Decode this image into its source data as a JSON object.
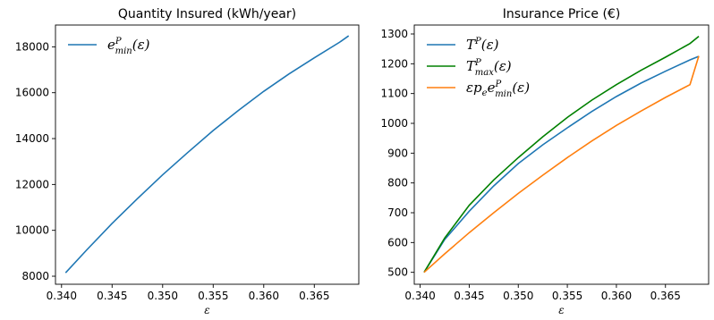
{
  "chart_data": [
    {
      "type": "line",
      "title": "Quantity Insured (kWh/year)",
      "xlabel": "ε",
      "ylabel": "",
      "xlim": [
        0.3394,
        0.3694
      ],
      "ylim": [
        7650,
        18950
      ],
      "xticks": [
        0.34,
        0.345,
        0.35,
        0.355,
        0.36,
        0.365
      ],
      "xtick_labels": [
        "0.340",
        "0.345",
        "0.350",
        "0.355",
        "0.360",
        "0.365"
      ],
      "yticks": [
        8000,
        10000,
        12000,
        14000,
        16000,
        18000
      ],
      "ytick_labels": [
        "8000",
        "10000",
        "12000",
        "14000",
        "16000",
        "18000"
      ],
      "grid": false,
      "legend_position": "top-left",
      "series": [
        {
          "name": "e_min^P(ε)",
          "legend_base": "e",
          "legend_sup": "P",
          "legend_sub": "min",
          "legend_tail": "(ε)",
          "color": "#1f77b4",
          "x": [
            0.3404,
            0.3425,
            0.345,
            0.3475,
            0.35,
            0.3525,
            0.355,
            0.3575,
            0.36,
            0.3625,
            0.365,
            0.3675,
            0.3684
          ],
          "y": [
            8150,
            9150,
            10300,
            11380,
            12420,
            13400,
            14350,
            15230,
            16060,
            16820,
            17520,
            18200,
            18480
          ]
        }
      ]
    },
    {
      "type": "line",
      "title": "Insurance Price (€)",
      "xlabel": "ε",
      "ylabel": "",
      "xlim": [
        0.3394,
        0.3694
      ],
      "ylim": [
        460,
        1330
      ],
      "xticks": [
        0.34,
        0.345,
        0.35,
        0.355,
        0.36,
        0.365
      ],
      "xtick_labels": [
        "0.340",
        "0.345",
        "0.350",
        "0.355",
        "0.360",
        "0.365"
      ],
      "yticks": [
        500,
        600,
        700,
        800,
        900,
        1000,
        1100,
        1200,
        1300
      ],
      "ytick_labels": [
        "500",
        "600",
        "700",
        "800",
        "900",
        "1000",
        "1100",
        "1200",
        "1300"
      ],
      "grid": false,
      "legend_position": "top-left",
      "series": [
        {
          "name": "T^P(ε)",
          "legend_base": "T",
          "legend_sup": "P",
          "legend_sub": "",
          "legend_tail": "(ε)",
          "color": "#1f77b4",
          "x": [
            0.3404,
            0.3425,
            0.345,
            0.3475,
            0.35,
            0.3525,
            0.355,
            0.3575,
            0.36,
            0.3625,
            0.365,
            0.3675,
            0.3684
          ],
          "y": [
            500,
            610,
            705,
            790,
            865,
            928,
            985,
            1040,
            1090,
            1135,
            1175,
            1213,
            1225
          ]
        },
        {
          "name": "T_max^P(ε)",
          "legend_base": "T",
          "legend_sup": "P",
          "legend_sub": "max",
          "legend_tail": "(ε)",
          "color": "#008000",
          "x": [
            0.3404,
            0.3425,
            0.345,
            0.3475,
            0.35,
            0.3525,
            0.355,
            0.3575,
            0.36,
            0.3625,
            0.365,
            0.3675,
            0.3684
          ],
          "y": [
            500,
            615,
            725,
            810,
            885,
            955,
            1020,
            1078,
            1130,
            1178,
            1222,
            1268,
            1292
          ]
        },
        {
          "name": "εp_e e_min^P(ε)",
          "legend_base": "εp",
          "legend_sup": "",
          "legend_sub": "e",
          "legend_tail": "",
          "legend_extra_base": "e",
          "legend_extra_sup": "P",
          "legend_extra_sub": "min",
          "legend_extra_tail": "(ε)",
          "color": "#ff7f0e",
          "x": [
            0.3404,
            0.3425,
            0.345,
            0.3475,
            0.35,
            0.3525,
            0.355,
            0.3575,
            0.36,
            0.3625,
            0.365,
            0.3675,
            0.3684
          ],
          "y": [
            500,
            562,
            633,
            700,
            765,
            826,
            885,
            941,
            993,
            1041,
            1087,
            1130,
            1226
          ]
        }
      ]
    }
  ]
}
